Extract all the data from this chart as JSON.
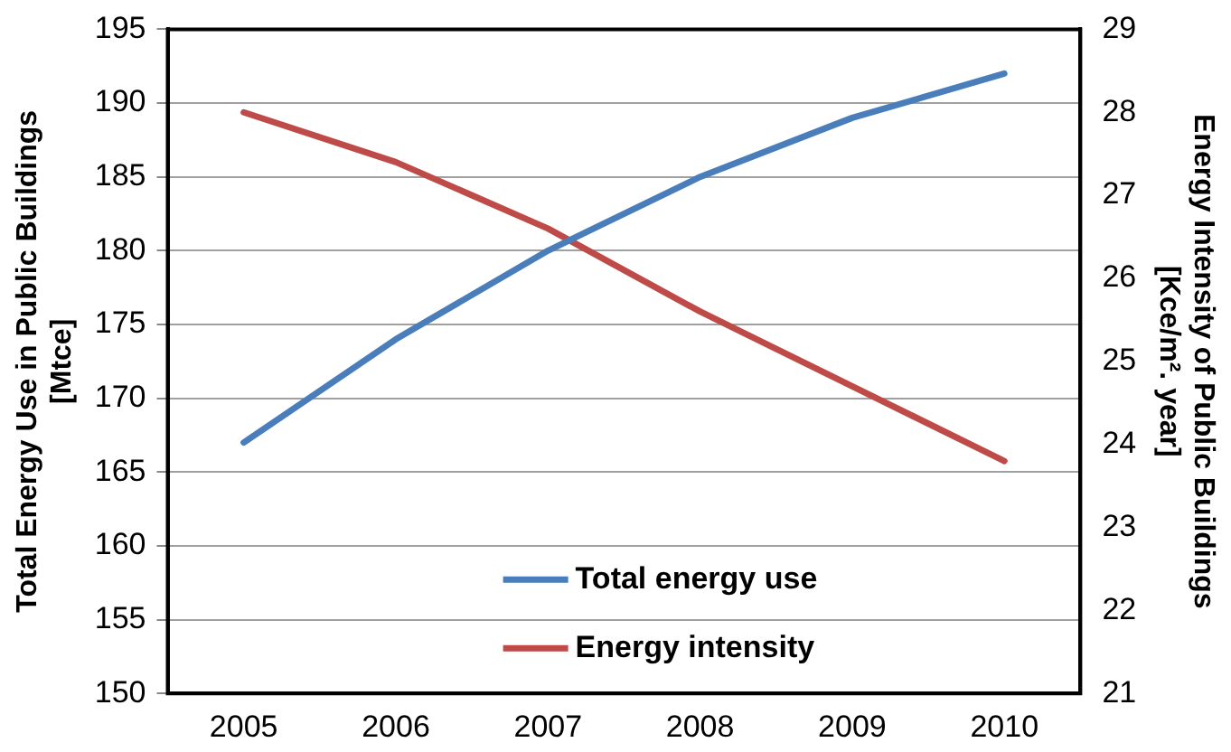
{
  "chart_data": {
    "type": "line",
    "categories": [
      "2005",
      "2006",
      "2007",
      "2008",
      "2009",
      "2010"
    ],
    "ylabel": "Total Energy Use in Public Buildings\n[Mtce]",
    "y2label": "Energy Intensity of Public Buildings\n[Kce/m². year]",
    "series": [
      {
        "name": "Total energy use",
        "color": "#4a7ebb",
        "values": [
          167,
          174,
          180,
          185,
          189,
          192
        ]
      },
      {
        "name": "Energy intensity",
        "color": "#be4b48",
        "axis": "y2",
        "values": [
          28.0,
          27.4,
          26.6,
          25.6,
          24.7,
          23.8
        ]
      }
    ],
    "ylim": [
      150,
      195
    ],
    "yticks": [
      150,
      155,
      160,
      165,
      170,
      175,
      180,
      185,
      190,
      195
    ],
    "y2lim": [
      21,
      29
    ],
    "y2ticks": [
      21,
      22,
      23,
      24,
      25,
      26,
      27,
      28,
      29
    ],
    "grid": "y",
    "legend": "bottom",
    "marker": "none",
    "line_style": "solid"
  }
}
